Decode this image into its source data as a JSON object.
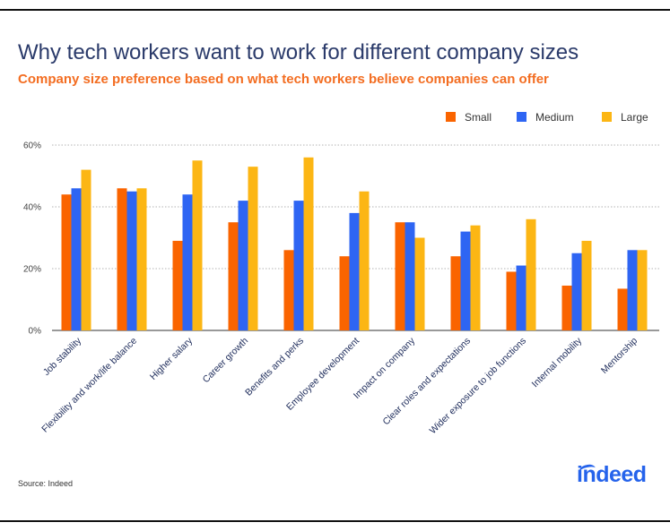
{
  "title": "Why tech workers want to work for different company sizes",
  "subtitle": "Company size preference based on what tech workers believe companies can offer",
  "source": "Source: Indeed",
  "logo_text": "indeed",
  "colors": {
    "small": "#fa6400",
    "medium": "#2e65f3",
    "large": "#fcb614",
    "title": "#2a3a6a",
    "subtitle": "#f36d21",
    "logo": "#2563eb"
  },
  "chart_data": {
    "type": "bar",
    "title": "Why tech workers want to work for different company sizes",
    "subtitle": "Company size preference based on what tech workers believe companies can offer",
    "xlabel": "",
    "ylabel": "",
    "ylim": [
      0,
      60
    ],
    "yticks": [
      "0%",
      "20%",
      "40%",
      "60%"
    ],
    "ytick_values": [
      0,
      20,
      40,
      60
    ],
    "grid": true,
    "legend_position": "top-right",
    "categories": [
      "Job stability",
      "Flexibility and work/life balance",
      "Higher salary",
      "Career growth",
      "Benefits and perks",
      "Employee development",
      "Impact on company",
      "Clear roles and expectations",
      "Wider exposure to job functions",
      "Internal mobility",
      "Mentorship"
    ],
    "series": [
      {
        "name": "Small",
        "values": [
          44,
          46,
          29,
          35,
          26,
          24,
          35,
          24,
          19,
          14.5,
          13.5
        ]
      },
      {
        "name": "Medium",
        "values": [
          46,
          45,
          44,
          42,
          42,
          38,
          35,
          32,
          21,
          25,
          26
        ]
      },
      {
        "name": "Large",
        "values": [
          52,
          46,
          55,
          53,
          56,
          45,
          30,
          34,
          36,
          29,
          26
        ]
      }
    ]
  }
}
